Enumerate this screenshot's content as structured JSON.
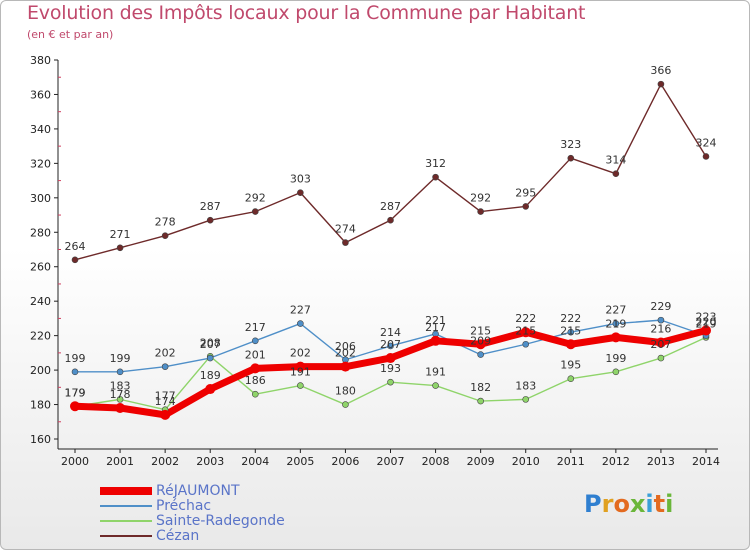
{
  "title": "Evolution des Impôts locaux pour la Commune par Habitant",
  "subtitle": "(en € et par an)",
  "brand": [
    "P",
    "r",
    "o",
    "x",
    "i",
    "t",
    "i"
  ],
  "chart_data": {
    "type": "line",
    "x": [
      "2000",
      "2001",
      "2002",
      "2003",
      "2004",
      "2005",
      "2006",
      "2007",
      "2008",
      "2009",
      "2010",
      "2011",
      "2012",
      "2013",
      "2014"
    ],
    "ylim": [
      160,
      380
    ],
    "yticks": [
      160,
      180,
      200,
      220,
      240,
      260,
      280,
      300,
      320,
      340,
      360,
      380
    ],
    "grid": false,
    "legend_position": "bottom-left",
    "series": [
      {
        "name": "RéJAUMONT",
        "color": "#ee0000",
        "values": [
          179,
          178,
          174,
          189,
          201,
          202,
          202,
          207,
          217,
          215,
          222,
          215,
          219,
          216,
          223
        ]
      },
      {
        "name": "Préchac",
        "color": "#4f8fc8",
        "values": [
          199,
          199,
          202,
          207,
          217,
          227,
          206,
          214,
          221,
          209,
          215,
          222,
          227,
          229,
          220
        ]
      },
      {
        "name": "Sainte-Radegonde",
        "color": "#8fd46a",
        "values": [
          179,
          183,
          177,
          208,
          186,
          191,
          180,
          193,
          191,
          182,
          183,
          195,
          199,
          207,
          219
        ]
      },
      {
        "name": "Cézan",
        "color": "#6e2a2a",
        "values": [
          264,
          271,
          278,
          287,
          292,
          303,
          274,
          287,
          312,
          292,
          295,
          323,
          314,
          366,
          324
        ]
      }
    ]
  }
}
